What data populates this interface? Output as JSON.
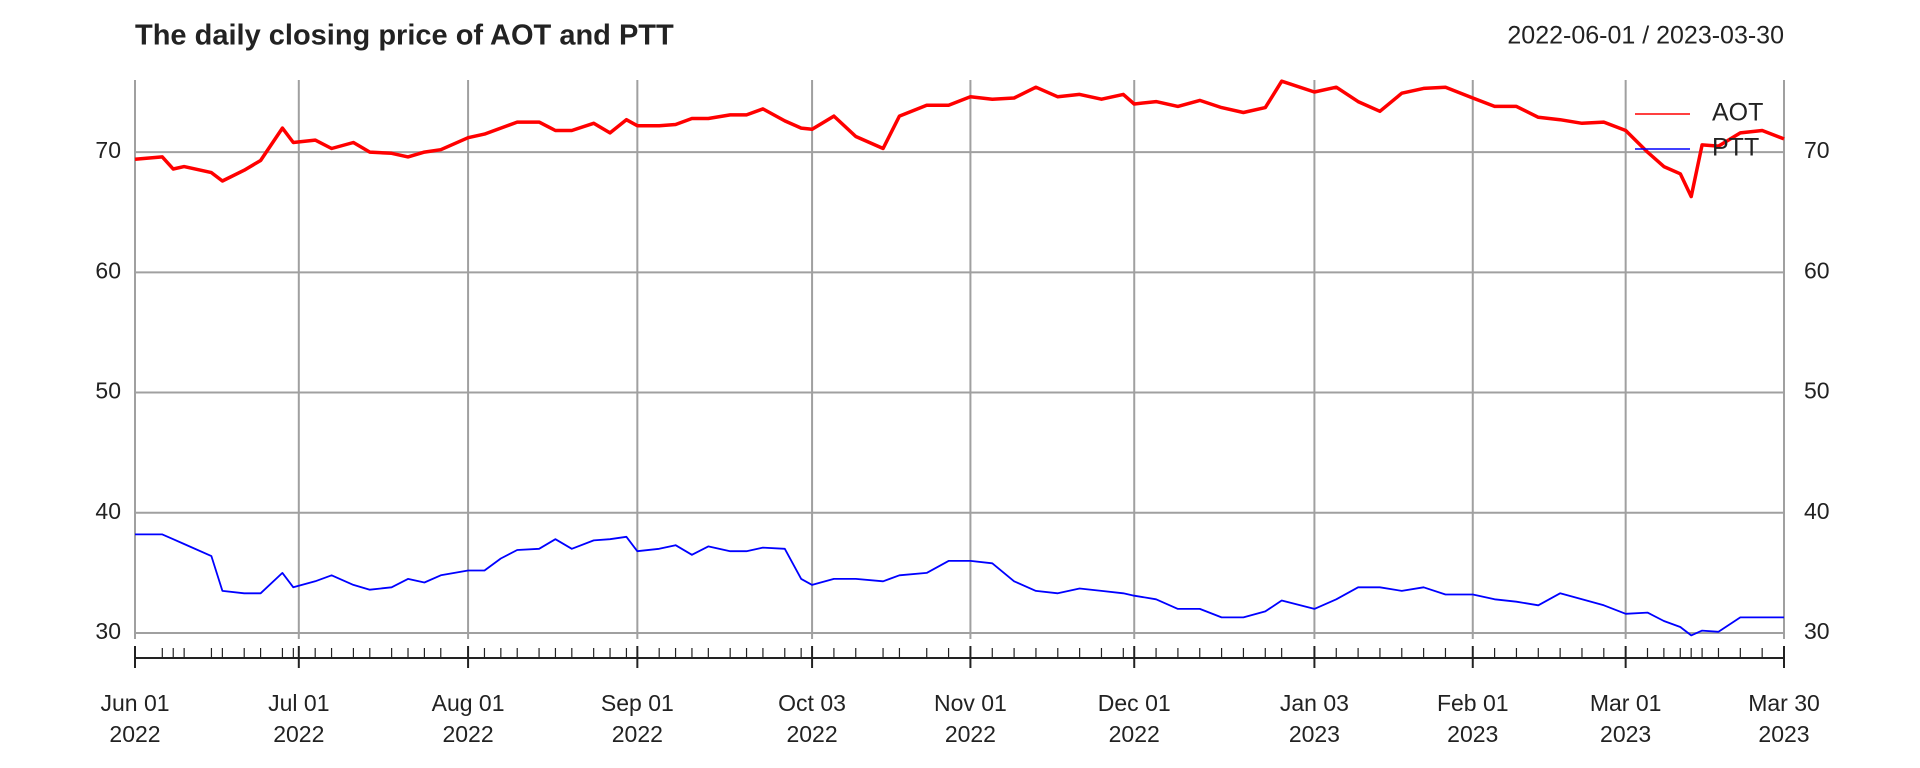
{
  "chart_data": {
    "type": "line",
    "title": "The daily closing price of AOT and PTT",
    "subtitle": "2022-06-01 / 2023-03-30",
    "x": [
      "2022-06-01",
      "2022-06-06",
      "2022-06-08",
      "2022-06-10",
      "2022-06-15",
      "2022-06-17",
      "2022-06-21",
      "2022-06-24",
      "2022-06-28",
      "2022-06-30",
      "2022-07-04",
      "2022-07-07",
      "2022-07-11",
      "2022-07-14",
      "2022-07-18",
      "2022-07-21",
      "2022-07-24",
      "2022-07-27",
      "2022-08-01",
      "2022-08-04",
      "2022-08-07",
      "2022-08-10",
      "2022-08-14",
      "2022-08-17",
      "2022-08-20",
      "2022-08-24",
      "2022-08-27",
      "2022-08-30",
      "2022-09-01",
      "2022-09-05",
      "2022-09-08",
      "2022-09-11",
      "2022-09-14",
      "2022-09-18",
      "2022-09-21",
      "2022-09-24",
      "2022-09-28",
      "2022-10-01",
      "2022-10-03",
      "2022-10-07",
      "2022-10-11",
      "2022-10-16",
      "2022-10-19",
      "2022-10-24",
      "2022-10-28",
      "2022-11-01",
      "2022-11-05",
      "2022-11-09",
      "2022-11-13",
      "2022-11-17",
      "2022-11-21",
      "2022-11-25",
      "2022-11-29",
      "2022-12-01",
      "2022-12-05",
      "2022-12-09",
      "2022-12-13",
      "2022-12-17",
      "2022-12-21",
      "2022-12-25",
      "2022-12-28",
      "2023-01-03",
      "2023-01-07",
      "2023-01-11",
      "2023-01-15",
      "2023-01-19",
      "2023-01-23",
      "2023-01-27",
      "2023-02-01",
      "2023-02-05",
      "2023-02-09",
      "2023-02-13",
      "2023-02-17",
      "2023-02-21",
      "2023-02-25",
      "2023-03-01",
      "2023-03-05",
      "2023-03-08",
      "2023-03-11",
      "2023-03-13",
      "2023-03-15",
      "2023-03-18",
      "2023-03-22",
      "2023-03-26",
      "2023-03-30"
    ],
    "series": [
      {
        "name": "AOT",
        "color": "#ff0000",
        "values": [
          69.4,
          69.6,
          68.6,
          68.8,
          68.3,
          67.6,
          68.5,
          69.3,
          72.0,
          70.8,
          71.0,
          70.3,
          70.8,
          70.0,
          69.9,
          69.6,
          70.0,
          70.2,
          71.2,
          71.5,
          72.0,
          72.5,
          72.5,
          71.8,
          71.8,
          72.4,
          71.6,
          72.7,
          72.2,
          72.2,
          72.3,
          72.8,
          72.8,
          73.1,
          73.1,
          73.6,
          72.6,
          72.0,
          71.9,
          73.0,
          71.3,
          70.3,
          73.0,
          73.9,
          73.9,
          74.6,
          74.4,
          74.5,
          75.4,
          74.6,
          74.8,
          74.4,
          74.8,
          74.0,
          74.2,
          73.8,
          74.3,
          73.7,
          73.3,
          73.7,
          75.9,
          75.0,
          75.4,
          74.2,
          73.4,
          74.9,
          75.3,
          75.4,
          74.5,
          73.8,
          73.8,
          72.9,
          72.7,
          72.4,
          72.5,
          71.8,
          70.0,
          68.8,
          68.2,
          66.3,
          70.6,
          70.5,
          71.6,
          71.8,
          71.1
        ]
      },
      {
        "name": "PTT",
        "color": "#0000ff",
        "values": [
          38.2,
          38.2,
          37.8,
          37.4,
          36.4,
          33.5,
          33.3,
          33.3,
          35.0,
          33.8,
          34.3,
          34.8,
          34.0,
          33.6,
          33.8,
          34.5,
          34.2,
          34.8,
          35.2,
          35.2,
          36.2,
          36.9,
          37.0,
          37.8,
          37.0,
          37.7,
          37.8,
          38.0,
          36.8,
          37.0,
          37.3,
          36.5,
          37.2,
          36.8,
          36.8,
          37.1,
          37.0,
          34.5,
          34.0,
          34.5,
          34.5,
          34.3,
          34.8,
          35.0,
          36.0,
          36.0,
          35.8,
          34.3,
          33.5,
          33.3,
          33.7,
          33.5,
          33.3,
          33.1,
          32.8,
          32.0,
          32.0,
          31.3,
          31.3,
          31.8,
          32.7,
          32.0,
          32.8,
          33.8,
          33.8,
          33.5,
          33.8,
          33.2,
          33.2,
          32.8,
          32.6,
          32.3,
          33.3,
          32.8,
          32.3,
          31.6,
          31.7,
          31.0,
          30.5,
          29.8,
          30.2,
          30.1,
          31.3,
          31.3,
          31.3
        ]
      }
    ],
    "xlim": [
      "2022-06-01",
      "2023-03-30"
    ],
    "xticks": [
      {
        "value": "2022-06-01",
        "label": "Jun 01\n2022"
      },
      {
        "value": "2022-07-01",
        "label": "Jul 01\n2022"
      },
      {
        "value": "2022-08-01",
        "label": "Aug 01\n2022"
      },
      {
        "value": "2022-09-01",
        "label": "Sep 01\n2022"
      },
      {
        "value": "2022-10-03",
        "label": "Oct 03\n2022"
      },
      {
        "value": "2022-11-01",
        "label": "Nov 01\n2022"
      },
      {
        "value": "2022-12-01",
        "label": "Dec 01\n2022"
      },
      {
        "value": "2023-01-03",
        "label": "Jan 03\n2023"
      },
      {
        "value": "2023-02-01",
        "label": "Feb 01\n2023"
      },
      {
        "value": "2023-03-01",
        "label": "Mar 01\n2023"
      },
      {
        "value": "2023-03-30",
        "label": "Mar 30\n2023"
      }
    ],
    "ylim": [
      29.5,
      76.0
    ],
    "yticks": [
      30,
      40,
      50,
      60,
      70
    ],
    "grid": true,
    "legend": "topright"
  }
}
